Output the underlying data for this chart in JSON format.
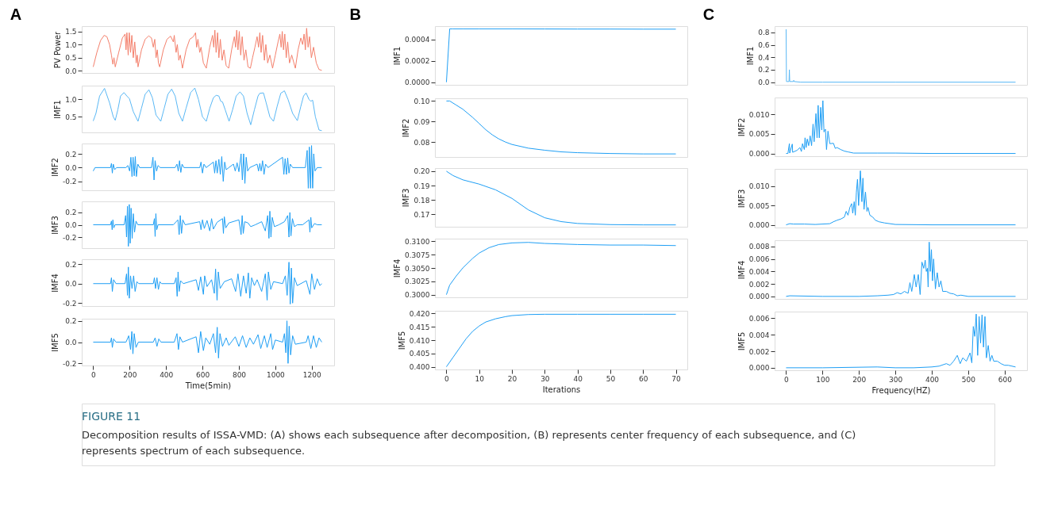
{
  "chart_data": [
    {
      "type": "line",
      "title": "A",
      "ylabel": "PV Power",
      "tick_labels": "y",
      "grid": false,
      "xlim": [
        -63,
        1323
      ],
      "xticks": [
        0,
        200,
        400,
        600,
        800,
        1000,
        1200
      ],
      "ylim": [
        -0.08,
        1.7
      ],
      "yticks": [
        {
          "value": 0,
          "label": "0.0"
        },
        {
          "value": 0.5,
          "label": "0.5"
        },
        {
          "value": 1,
          "label": "1.0"
        },
        {
          "value": 1.5,
          "label": "1.5"
        }
      ],
      "series": [
        {
          "color": "#f4806c",
          "x": [
            0,
            20,
            40,
            60,
            75,
            90,
            100,
            108,
            114,
            121,
            140,
            160,
            175,
            180,
            185,
            192,
            198,
            205,
            212,
            220,
            228,
            236,
            242,
            246,
            265,
            285,
            305,
            320,
            330,
            338,
            345,
            352,
            358,
            365,
            385,
            405,
            425,
            440,
            445,
            455,
            462,
            470,
            478,
            490,
            510,
            530,
            550,
            562,
            568,
            575,
            585,
            592,
            605,
            621,
            640,
            655,
            662,
            668,
            675,
            683,
            690,
            698,
            708,
            718,
            730,
            744,
            760,
            775,
            782,
            788,
            795,
            802,
            810,
            818,
            828,
            838,
            850,
            863,
            875,
            888,
            900,
            908,
            915,
            922,
            930,
            940,
            948,
            958,
            970,
            985,
            1000,
            1015,
            1025,
            1032,
            1038,
            1045,
            1052,
            1060,
            1068,
            1078,
            1090,
            1110,
            1125,
            1140,
            1150,
            1158,
            1165,
            1172,
            1180,
            1188,
            1198,
            1210,
            1225,
            1240,
            1255
          ],
          "values": [
            0.15,
            0.7,
            1.15,
            1.35,
            1.3,
            1.0,
            0.6,
            0.25,
            0.5,
            0.15,
            0.7,
            1.25,
            1.4,
            0.8,
            1.45,
            0.6,
            1.45,
            0.7,
            1.35,
            0.5,
            1.1,
            0.3,
            0.6,
            0.15,
            0.8,
            1.2,
            1.33,
            1.25,
            0.9,
            1.2,
            0.5,
            0.8,
            0.3,
            0.15,
            0.8,
            1.2,
            1.32,
            1.1,
            1.35,
            0.7,
            1.0,
            0.4,
            0.6,
            0.1,
            0.8,
            1.2,
            1.3,
            1.45,
            0.9,
            1.2,
            0.7,
            0.9,
            0.3,
            0.1,
            0.9,
            1.35,
            0.9,
            1.55,
            0.7,
            1.45,
            0.5,
            1.2,
            0.4,
            0.8,
            0.2,
            0.1,
            0.8,
            1.3,
            0.9,
            1.55,
            0.8,
            1.5,
            0.6,
            1.3,
            0.4,
            0.8,
            0.15,
            0.1,
            0.5,
            0.9,
            1.3,
            0.9,
            1.45,
            0.7,
            1.35,
            0.4,
            1.0,
            0.3,
            0.6,
            0.1,
            0.6,
            1.1,
            1.4,
            0.9,
            1.5,
            0.8,
            1.4,
            0.5,
            1.1,
            0.3,
            0.6,
            0.1,
            0.8,
            1.25,
            1.0,
            1.4,
            0.8,
            1.62,
            0.9,
            1.3,
            0.5,
            0.9,
            0.3,
            0.05,
            0.02
          ]
        }
      ]
    },
    {
      "type": "line",
      "ylabel": "IMF1",
      "tick_labels": "y",
      "grid": false,
      "xlim": [
        -63,
        1323
      ],
      "xticks": [
        0,
        200,
        400,
        600,
        800,
        1000,
        1200
      ],
      "ylim": [
        0.05,
        1.4
      ],
      "yticks": [
        {
          "value": 0.5,
          "label": "0.5"
        },
        {
          "value": 1,
          "label": "1.0"
        }
      ],
      "series": [
        {
          "color": "#5ab8f5",
          "x": [
            0,
            15,
            35,
            62,
            90,
            110,
            121,
            135,
            150,
            169,
            185,
            199,
            220,
            246,
            265,
            285,
            306,
            325,
            345,
            371,
            390,
            410,
            431,
            450,
            470,
            490,
            510,
            535,
            558,
            578,
            600,
            621,
            640,
            660,
            675,
            690,
            700,
            710,
            725,
            746,
            765,
            785,
            806,
            825,
            845,
            865,
            885,
            905,
            915,
            935,
            950,
            970,
            990,
            1010,
            1030,
            1050,
            1070,
            1095,
            1121,
            1140,
            1155,
            1169,
            1185,
            1195,
            1205,
            1220,
            1240,
            1255
          ],
          "values": [
            0.38,
            0.6,
            1.1,
            1.32,
            0.9,
            0.5,
            0.4,
            0.7,
            1.1,
            1.2,
            1.1,
            1.02,
            0.65,
            0.37,
            0.75,
            1.15,
            1.28,
            1.05,
            0.55,
            0.37,
            0.75,
            1.15,
            1.3,
            1.1,
            0.6,
            0.37,
            0.75,
            1.2,
            1.33,
            1.0,
            0.5,
            0.37,
            0.75,
            1.05,
            1.12,
            1.1,
            0.95,
            0.93,
            0.7,
            0.37,
            0.7,
            1.1,
            1.22,
            1.1,
            0.6,
            0.27,
            0.7,
            1.1,
            1.18,
            1.19,
            0.9,
            0.5,
            0.37,
            0.8,
            1.18,
            1.25,
            1.0,
            0.6,
            0.39,
            0.8,
            1.1,
            1.19,
            1.0,
            0.95,
            0.98,
            0.5,
            0.12,
            0.1
          ]
        }
      ]
    },
    {
      "type": "line",
      "ylabel": "IMF2",
      "tick_labels": "y",
      "grid": false,
      "xlim": [
        -63,
        1323
      ],
      "xticks": [
        0,
        200,
        400,
        600,
        800,
        1000,
        1200
      ],
      "ylim": [
        -0.33,
        0.35
      ],
      "yticks": [
        {
          "value": -0.2,
          "label": "-0.2"
        },
        {
          "value": 0,
          "label": "0.0"
        },
        {
          "value": 0.2,
          "label": "0.2"
        }
      ],
      "series": [
        {
          "color": "#1f9ff5",
          "x": [
            0,
            10,
            95,
            100,
            105,
            110,
            118,
            128,
            180,
            190,
            200,
            207,
            213,
            219,
            225,
            231,
            237,
            245,
            255,
            320,
            328,
            334,
            340,
            348,
            356,
            368,
            450,
            460,
            467,
            474,
            481,
            488,
            498,
            585,
            592,
            600,
            608,
            620,
            660,
            667,
            674,
            681,
            690,
            698,
            706,
            714,
            722,
            730,
            745,
            770,
            780,
            790,
            800,
            812,
            819,
            826,
            833,
            840,
            848,
            860,
            900,
            908,
            915,
            922,
            930,
            938,
            946,
            960,
            1040,
            1047,
            1054,
            1061,
            1068,
            1075,
            1082,
            1095,
            1165,
            1175,
            1181,
            1187,
            1193,
            1199,
            1205,
            1211,
            1218,
            1230,
            1255
          ],
          "values": [
            -0.05,
            0.0,
            0.0,
            0.06,
            -0.08,
            0.05,
            -0.03,
            0.0,
            0.0,
            0.03,
            -0.05,
            0.15,
            -0.13,
            0.15,
            -0.12,
            0.16,
            -0.13,
            0.05,
            0.0,
            0.0,
            0.15,
            -0.18,
            0.1,
            -0.05,
            0.03,
            0.0,
            0.0,
            0.05,
            -0.05,
            0.1,
            -0.07,
            0.05,
            0.0,
            0.0,
            0.08,
            -0.08,
            0.05,
            0.0,
            0.08,
            -0.08,
            0.1,
            -0.08,
            0.12,
            -0.1,
            0.16,
            -0.2,
            0.08,
            -0.03,
            0.0,
            0.05,
            -0.05,
            0.07,
            -0.06,
            0.2,
            -0.18,
            0.2,
            -0.23,
            0.15,
            -0.05,
            0.0,
            0.05,
            -0.05,
            0.06,
            -0.05,
            0.1,
            -0.1,
            0.05,
            0.0,
            0.15,
            -0.1,
            0.13,
            -0.1,
            0.14,
            -0.08,
            0.05,
            0.0,
            0.0,
            0.25,
            -0.3,
            0.3,
            -0.3,
            0.32,
            -0.3,
            0.2,
            -0.05,
            0.0,
            0.0
          ]
        }
      ]
    },
    {
      "type": "line",
      "ylabel": "IMF3",
      "tick_labels": "y",
      "grid": false,
      "xlim": [
        -63,
        1323
      ],
      "xticks": [
        0,
        200,
        400,
        600,
        800,
        1000,
        1200
      ],
      "ylim": [
        -0.38,
        0.38
      ],
      "yticks": [
        {
          "value": -0.2,
          "label": "-0.2"
        },
        {
          "value": 0,
          "label": "0.0"
        },
        {
          "value": 0.2,
          "label": "0.2"
        }
      ],
      "series": [
        {
          "color": "#1f9ff5",
          "x": [
            0,
            95,
            100,
            104,
            108,
            113,
            120,
            170,
            178,
            183,
            188,
            193,
            198,
            203,
            208,
            214,
            220,
            227,
            235,
            245,
            330,
            336,
            340,
            344,
            349,
            356,
            440,
            465,
            472,
            478,
            485,
            492,
            505,
            585,
            592,
            600,
            610,
            625,
            640,
            650,
            660,
            680,
            710,
            715,
            720,
            728,
            745,
            800,
            812,
            818,
            824,
            832,
            850,
            865,
            890,
            925,
            945,
            958,
            965,
            970,
            976,
            983,
            995,
            1020,
            1050,
            1068,
            1075,
            1080,
            1086,
            1094,
            1105,
            1120,
            1150,
            1185,
            1190,
            1195,
            1200,
            1215,
            1230,
            1255
          ],
          "values": [
            0.0,
            0.0,
            0.06,
            -0.08,
            0.08,
            -0.05,
            0.0,
            0.0,
            0.15,
            -0.2,
            0.3,
            -0.35,
            0.33,
            -0.3,
            0.27,
            -0.22,
            0.18,
            -0.12,
            0.06,
            0.0,
            0.0,
            0.1,
            -0.19,
            0.18,
            -0.08,
            0.0,
            0.0,
            0.08,
            -0.16,
            0.15,
            -0.14,
            0.08,
            0.0,
            0.05,
            -0.08,
            0.08,
            -0.06,
            0.07,
            -0.1,
            0.1,
            -0.07,
            0.04,
            0.1,
            -0.14,
            0.13,
            -0.05,
            0.03,
            0.08,
            -0.16,
            0.15,
            -0.14,
            0.05,
            0.03,
            -0.03,
            0.0,
            0.05,
            -0.1,
            0.15,
            -0.22,
            0.22,
            -0.2,
            0.12,
            -0.03,
            0.0,
            0.05,
            0.15,
            -0.2,
            0.2,
            -0.18,
            0.1,
            -0.03,
            0.0,
            0.0,
            0.08,
            -0.12,
            0.12,
            -0.05,
            0.02,
            0.0,
            0.0
          ]
        }
      ]
    },
    {
      "type": "line",
      "ylabel": "IMF4",
      "tick_labels": "y",
      "grid": false,
      "xlim": [
        -63,
        1323
      ],
      "xticks": [
        0,
        200,
        400,
        600,
        800,
        1000,
        1200
      ],
      "ylim": [
        -0.23,
        0.25
      ],
      "yticks": [
        {
          "value": -0.2,
          "label": "-0.2"
        },
        {
          "value": 0,
          "label": "0.0"
        },
        {
          "value": 0.2,
          "label": "0.2"
        }
      ],
      "series": [
        {
          "color": "#1f9ff5",
          "x": [
            0,
            95,
            100,
            105,
            112,
            125,
            175,
            183,
            188,
            193,
            198,
            205,
            213,
            222,
            230,
            240,
            250,
            330,
            336,
            342,
            350,
            358,
            366,
            375,
            445,
            455,
            461,
            466,
            472,
            480,
            495,
            565,
            578,
            590,
            605,
            612,
            625,
            650,
            665,
            672,
            680,
            687,
            697,
            720,
            760,
            782,
            795,
            810,
            825,
            840,
            852,
            860,
            870,
            885,
            900,
            925,
            945,
            955,
            962,
            975,
            990,
            1040,
            1055,
            1065,
            1075,
            1082,
            1088,
            1095,
            1105,
            1120,
            1170,
            1190,
            1200,
            1215,
            1230,
            1245,
            1255
          ],
          "values": [
            0.0,
            0.0,
            0.06,
            -0.08,
            0.04,
            0.0,
            0.0,
            0.1,
            -0.12,
            0.17,
            -0.15,
            0.08,
            -0.05,
            0.08,
            -0.08,
            0.02,
            0.0,
            0.0,
            0.06,
            -0.05,
            0.06,
            -0.06,
            0.02,
            0.0,
            0.0,
            0.06,
            -0.13,
            0.12,
            -0.08,
            0.03,
            0.0,
            0.04,
            -0.07,
            0.07,
            -0.11,
            0.08,
            -0.03,
            0.04,
            -0.1,
            0.15,
            -0.17,
            0.12,
            -0.05,
            0.02,
            0.05,
            -0.08,
            0.1,
            -0.13,
            0.08,
            -0.1,
            0.11,
            -0.15,
            0.06,
            -0.02,
            0.04,
            -0.08,
            0.1,
            -0.17,
            0.12,
            -0.06,
            0.02,
            0.0,
            0.08,
            -0.12,
            0.22,
            -0.21,
            0.16,
            -0.2,
            0.06,
            -0.02,
            0.03,
            -0.11,
            0.1,
            -0.06,
            0.05,
            -0.02,
            0.0
          ]
        }
      ]
    },
    {
      "type": "line",
      "ylabel": "IMF5",
      "xlabel": "Time(5min)",
      "grid": false,
      "xlim": [
        -63,
        1323
      ],
      "xticks": [
        0,
        200,
        400,
        600,
        800,
        1000,
        1200
      ],
      "ylim": [
        -0.22,
        0.22
      ],
      "yticks": [
        {
          "value": -0.2,
          "label": "-0.2"
        },
        {
          "value": 0,
          "label": "0.0"
        },
        {
          "value": 0.2,
          "label": "0.2"
        }
      ],
      "series": [
        {
          "color": "#1f9ff5",
          "x": [
            0,
            95,
            100,
            105,
            112,
            125,
            180,
            195,
            205,
            212,
            218,
            225,
            235,
            248,
            330,
            340,
            350,
            360,
            372,
            445,
            460,
            468,
            476,
            490,
            565,
            578,
            590,
            605,
            618,
            640,
            660,
            672,
            681,
            688,
            696,
            710,
            730,
            745,
            780,
            800,
            820,
            840,
            860,
            880,
            905,
            920,
            940,
            955,
            975,
            985,
            1000,
            1040,
            1050,
            1058,
            1064,
            1070,
            1076,
            1084,
            1095,
            1110,
            1170,
            1180,
            1195,
            1210,
            1225,
            1240,
            1255
          ],
          "values": [
            0.0,
            0.0,
            0.04,
            -0.05,
            0.03,
            0.0,
            0.0,
            0.06,
            -0.07,
            0.1,
            -0.11,
            0.08,
            -0.05,
            0.0,
            0.0,
            0.04,
            -0.04,
            0.03,
            0.0,
            0.0,
            0.08,
            -0.07,
            0.05,
            0.0,
            0.05,
            -0.1,
            0.1,
            -0.08,
            0.04,
            -0.02,
            0.08,
            -0.1,
            0.14,
            -0.15,
            0.08,
            -0.04,
            0.04,
            -0.03,
            0.05,
            -0.04,
            0.06,
            -0.05,
            0.04,
            -0.02,
            0.07,
            -0.06,
            0.06,
            -0.05,
            0.08,
            -0.07,
            0.02,
            0.0,
            0.08,
            -0.1,
            0.2,
            -0.2,
            0.15,
            -0.12,
            0.06,
            -0.02,
            0.0,
            0.06,
            -0.06,
            0.06,
            -0.05,
            0.04,
            0.0
          ]
        }
      ]
    },
    {
      "type": "line",
      "title": "B",
      "ylabel": "IMF1",
      "tick_labels": "y",
      "grid": false,
      "xlim": [
        -3.5,
        73.5
      ],
      "xticks": [
        0,
        10,
        20,
        30,
        40,
        50,
        60,
        70
      ],
      "ylim": [
        -2.5e-05,
        0.000525
      ],
      "yticks": [
        {
          "value": 0,
          "label": "0.0000"
        },
        {
          "value": 0.0002,
          "label": "0.0002"
        },
        {
          "value": 0.0004,
          "label": "0.0004"
        }
      ],
      "series": [
        {
          "color": "#1f9ff5",
          "x": [
            0,
            1,
            2,
            5,
            10,
            20,
            30,
            40,
            50,
            60,
            70
          ],
          "values": [
            0,
            0.0005,
            0.0005,
            0.0005,
            0.0005,
            0.0005,
            0.000499,
            0.000498,
            0.000498,
            0.000497,
            0.000497
          ]
        }
      ]
    },
    {
      "type": "line",
      "ylabel": "IMF2",
      "tick_labels": "y",
      "grid": false,
      "xlim": [
        -3.5,
        73.5
      ],
      "xticks": [
        0,
        10,
        20,
        30,
        40,
        50,
        60,
        70
      ],
      "ylim": [
        0.0727,
        0.1013
      ],
      "yticks": [
        {
          "value": 0.08,
          "label": "0.08"
        },
        {
          "value": 0.09,
          "label": "0.09"
        },
        {
          "value": 0.1,
          "label": "0.10"
        }
      ],
      "series": [
        {
          "color": "#1f9ff5",
          "x": [
            0,
            1,
            3,
            5,
            8,
            10,
            12,
            14,
            16,
            18,
            20,
            25,
            30,
            35,
            40,
            50,
            60,
            70
          ],
          "values": [
            0.1,
            0.1,
            0.098,
            0.096,
            0.092,
            0.089,
            0.086,
            0.0835,
            0.0815,
            0.08,
            0.0788,
            0.077,
            0.076,
            0.0752,
            0.0748,
            0.0744,
            0.0742,
            0.0742
          ]
        }
      ]
    },
    {
      "type": "line",
      "ylabel": "IMF3",
      "tick_labels": "y",
      "grid": false,
      "xlim": [
        -3.5,
        73.5
      ],
      "xticks": [
        0,
        10,
        20,
        30,
        40,
        50,
        60,
        70
      ],
      "ylim": [
        0.1612,
        0.2022
      ],
      "yticks": [
        {
          "value": 0.17,
          "label": "0.17"
        },
        {
          "value": 0.18,
          "label": "0.18"
        },
        {
          "value": 0.19,
          "label": "0.19"
        },
        {
          "value": 0.2,
          "label": "0.20"
        }
      ],
      "series": [
        {
          "color": "#1f9ff5",
          "x": [
            0,
            2,
            5,
            10,
            15,
            20,
            25,
            30,
            35,
            40,
            50,
            60,
            70
          ],
          "values": [
            0.2,
            0.197,
            0.194,
            0.191,
            0.187,
            0.181,
            0.173,
            0.1675,
            0.1648,
            0.1635,
            0.1627,
            0.1625,
            0.1625
          ]
        }
      ]
    },
    {
      "type": "line",
      "ylabel": "IMF4",
      "tick_labels": "y",
      "grid": false,
      "xlim": [
        -3.5,
        73.5
      ],
      "xticks": [
        0,
        10,
        20,
        30,
        40,
        50,
        60,
        70
      ],
      "ylim": [
        0.2995,
        0.3105
      ],
      "yticks": [
        {
          "value": 0.3,
          "label": "0.3000"
        },
        {
          "value": 0.3025,
          "label": "0.3025"
        },
        {
          "value": 0.305,
          "label": "0.3050"
        },
        {
          "value": 0.3075,
          "label": "0.3075"
        },
        {
          "value": 0.31,
          "label": "0.3100"
        }
      ],
      "series": [
        {
          "color": "#1f9ff5",
          "x": [
            0,
            1,
            3,
            5,
            8,
            10,
            13,
            16,
            20,
            25,
            30,
            35,
            40,
            50,
            60,
            70
          ],
          "values": [
            0.3,
            0.3018,
            0.3035,
            0.305,
            0.3068,
            0.3078,
            0.3088,
            0.3094,
            0.3097,
            0.3098,
            0.3096,
            0.3095,
            0.3094,
            0.3093,
            0.3093,
            0.3092
          ]
        }
      ]
    },
    {
      "type": "line",
      "ylabel": "IMF5",
      "xlabel": "Iterations",
      "grid": false,
      "xlim": [
        -3.5,
        73.5
      ],
      "xticks": [
        0,
        10,
        20,
        30,
        40,
        50,
        60,
        70
      ],
      "ylim": [
        0.399,
        0.421
      ],
      "yticks": [
        {
          "value": 0.4,
          "label": "0.400"
        },
        {
          "value": 0.405,
          "label": "0.405"
        },
        {
          "value": 0.41,
          "label": "0.410"
        },
        {
          "value": 0.415,
          "label": "0.415"
        },
        {
          "value": 0.42,
          "label": "0.420"
        }
      ],
      "series": [
        {
          "color": "#1f9ff5",
          "x": [
            0,
            2,
            4,
            6,
            8,
            10,
            12,
            15,
            18,
            20,
            25,
            30,
            40,
            50,
            60,
            70
          ],
          "values": [
            0.4,
            0.4035,
            0.407,
            0.4105,
            0.4133,
            0.4153,
            0.4168,
            0.418,
            0.4188,
            0.4192,
            0.4196,
            0.4197,
            0.4197,
            0.4197,
            0.4197,
            0.4197
          ]
        }
      ]
    },
    {
      "type": "line",
      "title": "C",
      "ylabel": "IMF1",
      "tick_labels": "y",
      "grid": false,
      "xlim": [
        -31.5,
        661.5
      ],
      "xticks": [
        0,
        100,
        200,
        300,
        400,
        500,
        600
      ],
      "ylim": [
        -0.043,
        0.9
      ],
      "yticks": [
        {
          "value": 0,
          "label": "0.0"
        },
        {
          "value": 0.2,
          "label": "0.2"
        },
        {
          "value": 0.4,
          "label": "0.4"
        },
        {
          "value": 0.6,
          "label": "0.6"
        },
        {
          "value": 0.8,
          "label": "0.8"
        }
      ],
      "series": [
        {
          "color": "#5ab8f5",
          "x": [
            0,
            1,
            3,
            8,
            9,
            10,
            12,
            20,
            21,
            22,
            40,
            100,
            300,
            630
          ],
          "values": [
            0.85,
            0.01,
            0.01,
            0.01,
            0.2,
            0.01,
            0.01,
            0.01,
            0.03,
            0.01,
            0.0,
            0.0,
            0.0,
            0.0
          ]
        }
      ]
    },
    {
      "type": "line",
      "ylabel": "IMF2",
      "tick_labels": "y",
      "grid": false,
      "xlim": [
        -31.5,
        661.5
      ],
      "xticks": [
        0,
        100,
        200,
        300,
        400,
        500,
        600
      ],
      "ylim": [
        -0.0007,
        0.0143
      ],
      "yticks": [
        {
          "value": 0,
          "label": "0.000"
        },
        {
          "value": 0.005,
          "label": "0.005"
        },
        {
          "value": 0.01,
          "label": "0.010"
        }
      ],
      "series": [
        {
          "color": "#1f9ff5",
          "x": [
            0,
            5,
            9,
            10,
            17,
            18,
            30,
            38,
            42,
            45,
            50,
            52,
            55,
            58,
            62,
            66,
            70,
            74,
            77,
            82,
            85,
            88,
            91,
            95,
            98,
            101,
            104,
            108,
            111,
            115,
            120,
            130,
            135,
            140,
            150,
            160,
            170,
            185,
            250,
            300,
            400,
            630
          ],
          "values": [
            0.0,
            0.0,
            0.0025,
            0.0001,
            0.0024,
            0.0003,
            0.0008,
            0.0015,
            0.0005,
            0.0025,
            0.001,
            0.004,
            0.0015,
            0.0037,
            0.002,
            0.0045,
            0.002,
            0.0075,
            0.003,
            0.0102,
            0.004,
            0.0123,
            0.004,
            0.0118,
            0.006,
            0.0135,
            0.0055,
            0.0062,
            0.001,
            0.0057,
            0.0025,
            0.0026,
            0.0013,
            0.0015,
            0.001,
            0.0006,
            0.0004,
            0.0001,
            0.0001,
            0.0001,
            0.0,
            0.0
          ]
        }
      ]
    },
    {
      "type": "line",
      "ylabel": "IMF3",
      "tick_labels": "y",
      "grid": false,
      "xlim": [
        -31.5,
        661.5
      ],
      "xticks": [
        0,
        100,
        200,
        300,
        400,
        500,
        600
      ],
      "ylim": [
        -0.0007,
        0.0145
      ],
      "yticks": [
        {
          "value": 0,
          "label": "0.000"
        },
        {
          "value": 0.005,
          "label": "0.005"
        },
        {
          "value": 0.01,
          "label": "0.010"
        }
      ],
      "series": [
        {
          "color": "#1f9ff5",
          "x": [
            0,
            10,
            20,
            50,
            80,
            120,
            130,
            140,
            150,
            160,
            165,
            170,
            175,
            180,
            183,
            187,
            190,
            193,
            196,
            199,
            204,
            208,
            211,
            214,
            218,
            222,
            225,
            230,
            238,
            245,
            255,
            270,
            300,
            400,
            630
          ],
          "values": [
            0.0,
            0.0003,
            0.0002,
            0.0002,
            0.0001,
            0.0003,
            0.0008,
            0.0012,
            0.0015,
            0.002,
            0.0035,
            0.0025,
            0.0045,
            0.0055,
            0.003,
            0.006,
            0.0025,
            0.0085,
            0.0118,
            0.005,
            0.014,
            0.006,
            0.0121,
            0.004,
            0.0085,
            0.0035,
            0.0045,
            0.0025,
            0.002,
            0.0012,
            0.0008,
            0.0005,
            0.0001,
            0.0,
            0.0
          ]
        }
      ]
    },
    {
      "type": "line",
      "ylabel": "IMF4",
      "tick_labels": "y",
      "grid": false,
      "xlim": [
        -31.5,
        661.5
      ],
      "xticks": [
        0,
        100,
        200,
        300,
        400,
        500,
        600
      ],
      "ylim": [
        -0.0004,
        0.009
      ],
      "yticks": [
        {
          "value": 0,
          "label": "0.000"
        },
        {
          "value": 0.002,
          "label": "0.002"
        },
        {
          "value": 0.004,
          "label": "0.004"
        },
        {
          "value": 0.006,
          "label": "0.006"
        },
        {
          "value": 0.008,
          "label": "0.008"
        }
      ],
      "series": [
        {
          "color": "#1f9ff5",
          "x": [
            0,
            10,
            100,
            200,
            250,
            280,
            295,
            305,
            315,
            325,
            335,
            340,
            345,
            352,
            357,
            363,
            368,
            373,
            378,
            382,
            385,
            388,
            390,
            393,
            396,
            399,
            402,
            405,
            410,
            415,
            420,
            425,
            430,
            440,
            450,
            460,
            470,
            480,
            500,
            630
          ],
          "values": [
            0.0,
            0.0001,
            0.0,
            0.0,
            0.0001,
            0.0002,
            0.0003,
            0.0006,
            0.0004,
            0.0008,
            0.0005,
            0.0022,
            0.0008,
            0.0035,
            0.0015,
            0.0035,
            0.0003,
            0.0055,
            0.0045,
            0.0058,
            0.004,
            0.0045,
            0.0015,
            0.0087,
            0.004,
            0.0075,
            0.0025,
            0.006,
            0.0012,
            0.0038,
            0.0015,
            0.0025,
            0.0008,
            0.0008,
            0.0005,
            0.0004,
            0.0001,
            0.0002,
            0.0,
            0.0
          ]
        }
      ]
    },
    {
      "type": "line",
      "ylabel": "IMF5",
      "xlabel": "Frequency(HZ)",
      "grid": false,
      "xlim": [
        -31.5,
        661.5
      ],
      "xticks": [
        0,
        100,
        200,
        300,
        400,
        500,
        600
      ],
      "ylim": [
        -0.0003,
        0.0068
      ],
      "yticks": [
        {
          "value": 0,
          "label": "0.000"
        },
        {
          "value": 0.002,
          "label": "0.002"
        },
        {
          "value": 0.004,
          "label": "0.004"
        },
        {
          "value": 0.006,
          "label": "0.006"
        }
      ],
      "series": [
        {
          "color": "#1f9ff5",
          "x": [
            0,
            100,
            250,
            300,
            350,
            400,
            420,
            440,
            450,
            460,
            470,
            478,
            485,
            495,
            505,
            510,
            514,
            518,
            522,
            526,
            530,
            534,
            538,
            542,
            546,
            550,
            555,
            560,
            565,
            570,
            580,
            590,
            600,
            610,
            620,
            630
          ],
          "values": [
            0.0,
            0.0,
            0.0001,
            0.0,
            0.0,
            0.0001,
            0.0002,
            0.0005,
            0.0003,
            0.0008,
            0.0015,
            0.0005,
            0.0012,
            0.0008,
            0.0018,
            0.0006,
            0.005,
            0.0038,
            0.0065,
            0.0015,
            0.0062,
            0.003,
            0.0064,
            0.0025,
            0.0062,
            0.0012,
            0.0027,
            0.0008,
            0.0015,
            0.0008,
            0.0008,
            0.0005,
            0.0003,
            0.0003,
            0.0002,
            0.0001
          ]
        }
      ]
    },
    {
      "type": "other",
      "title": "FIGURE 11",
      "annotations": [
        "Decomposition results of ISSA-VMD: (A) shows each subsequence after decomposition, (B) represents center frequency of each subsequence, and (C) represents spectrum of each subsequence."
      ]
    }
  ]
}
